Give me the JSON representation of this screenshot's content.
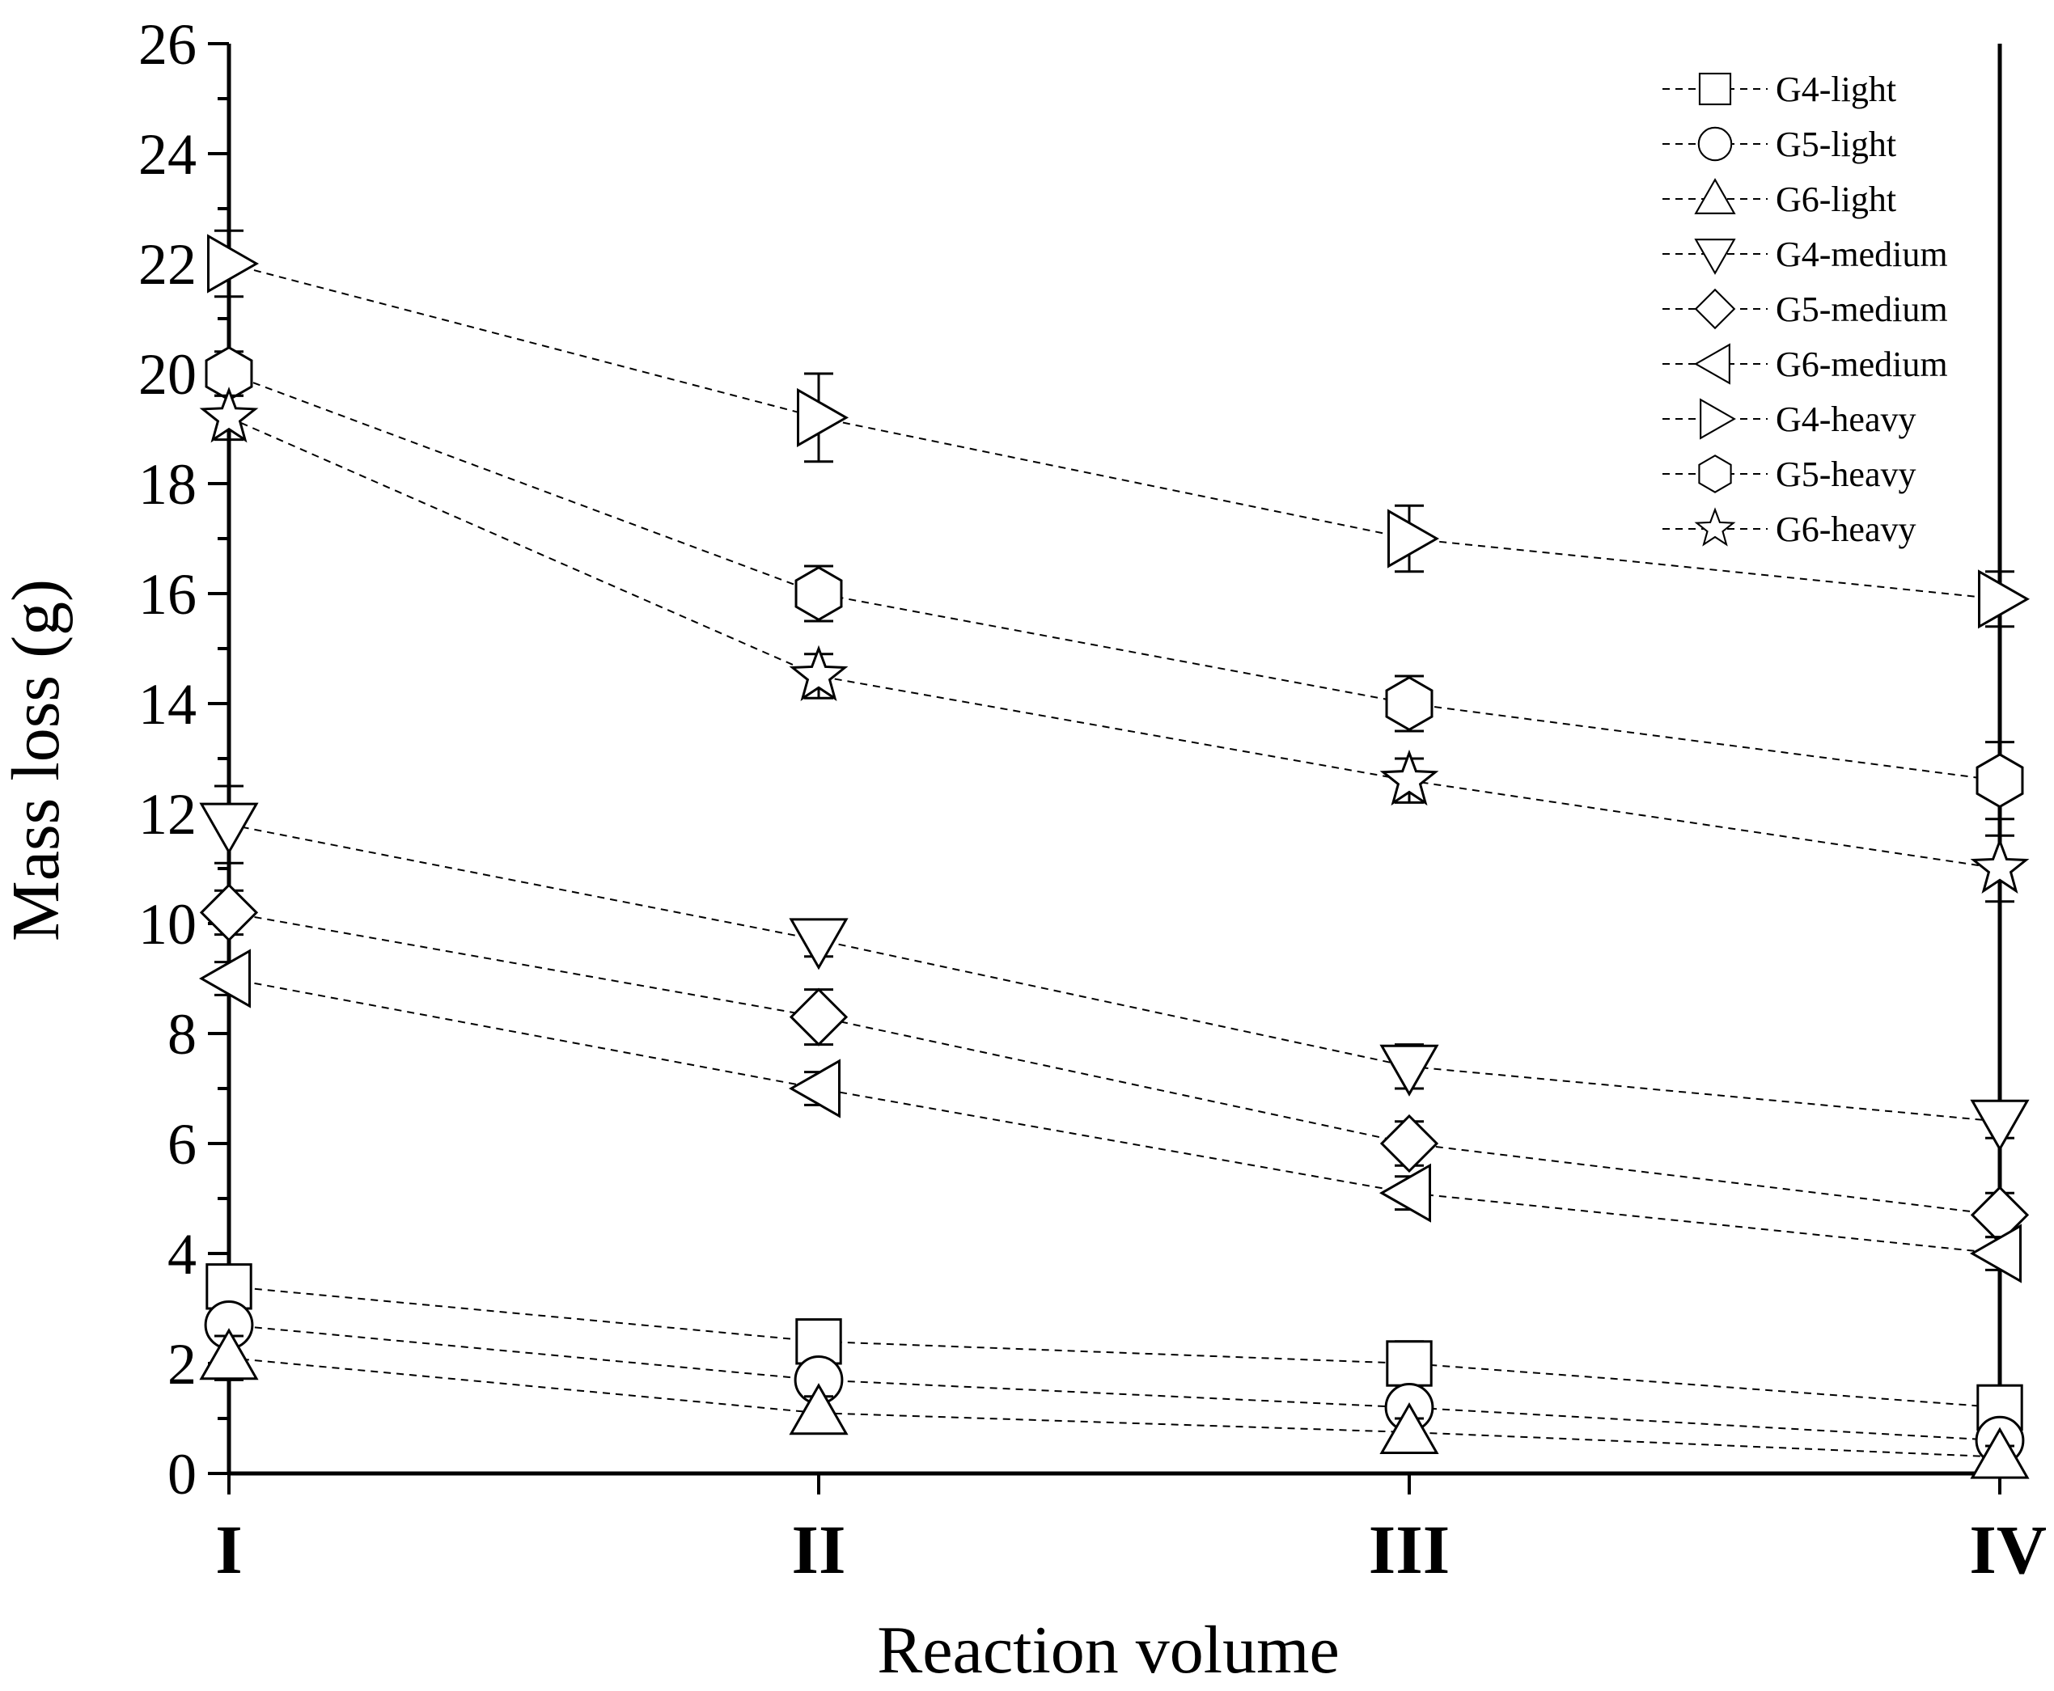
{
  "chart_data": {
    "type": "line",
    "title": "",
    "xlabel": "Reaction volume",
    "ylabel": "Mass loss (g)",
    "categories": [
      "I",
      "II",
      "III",
      "IV"
    ],
    "ylim": [
      0,
      26
    ],
    "yticks": [
      0,
      2,
      4,
      6,
      8,
      10,
      12,
      14,
      16,
      18,
      20,
      22,
      24,
      26
    ],
    "grid": false,
    "legend_position": "top-right",
    "series": [
      {
        "name": "G4-light",
        "marker": "square",
        "values": [
          3.4,
          2.4,
          2.0,
          1.2
        ],
        "errors": [
          0.3,
          0.3,
          0.4,
          0.1
        ]
      },
      {
        "name": "G5-light",
        "marker": "circle",
        "values": [
          2.7,
          1.7,
          1.2,
          0.6
        ],
        "errors": [
          0.3,
          0.3,
          0.2,
          0.2
        ]
      },
      {
        "name": "G6-light",
        "marker": "triangle-up",
        "values": [
          2.1,
          1.1,
          0.75,
          0.3
        ],
        "errors": [
          0.4,
          0.3,
          0.25,
          0.2
        ]
      },
      {
        "name": "G4-medium",
        "marker": "triangle-down",
        "values": [
          11.8,
          9.7,
          7.4,
          6.4
        ],
        "errors": [
          0.7,
          0.3,
          0.4,
          0.3
        ]
      },
      {
        "name": "G5-medium",
        "marker": "diamond",
        "values": [
          10.2,
          8.3,
          6.0,
          4.7
        ],
        "errors": [
          0.4,
          0.5,
          0.4,
          0.4
        ]
      },
      {
        "name": "G6-medium",
        "marker": "triangle-left",
        "values": [
          9.0,
          7.0,
          5.1,
          4.0
        ],
        "errors": [
          0.3,
          0.3,
          0.3,
          0.3
        ]
      },
      {
        "name": "G4-heavy",
        "marker": "triangle-right",
        "values": [
          22.0,
          19.2,
          17.0,
          15.9
        ],
        "errors": [
          0.6,
          0.8,
          0.6,
          0.5
        ]
      },
      {
        "name": "G5-heavy",
        "marker": "hexagon",
        "values": [
          20.0,
          16.0,
          14.0,
          12.6
        ],
        "errors": [
          0.4,
          0.5,
          0.5,
          0.7
        ]
      },
      {
        "name": "G6-heavy",
        "marker": "star",
        "values": [
          19.2,
          14.5,
          12.6,
          11.0
        ],
        "errors": [
          0.4,
          0.4,
          0.4,
          0.6
        ]
      }
    ]
  }
}
